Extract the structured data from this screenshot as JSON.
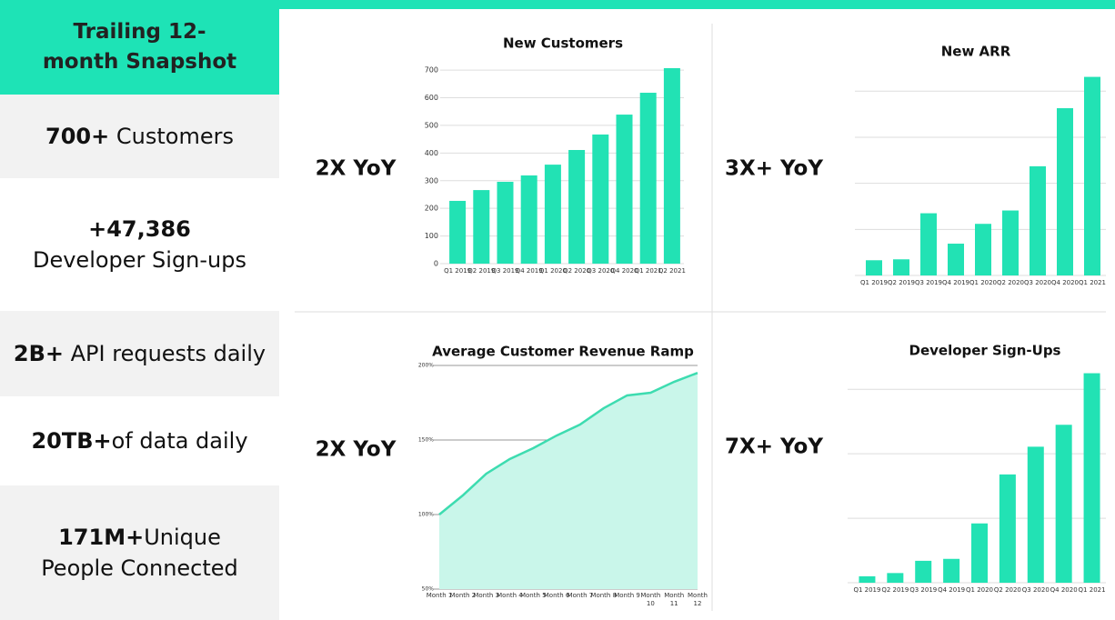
{
  "sidebar": {
    "title": "Trailing 12-month Snapshot",
    "items": [
      {
        "bold": "700+",
        "text": "Customers"
      },
      {
        "bold": "+47,386",
        "line2": "Developer Sign-ups"
      },
      {
        "bold": "2B+",
        "text": "API requests daily"
      },
      {
        "bold": "20TB+",
        "text": "of data daily"
      },
      {
        "bold": "171M+",
        "text": "Unique",
        "line2": "People Connected"
      }
    ]
  },
  "chart_data": [
    {
      "type": "bar",
      "title": "New Customers",
      "annotation": "2X YoY",
      "color": "#22e2b4",
      "categories": [
        "Q1 2019",
        "Q2 2019",
        "Q3 2019",
        "Q4 2019",
        "Q1 2020",
        "Q2 2020",
        "Q3 2020",
        "Q4 2020",
        "Q1 2021",
        "Q2 2021"
      ],
      "values": [
        227,
        266,
        296,
        319,
        358,
        411,
        467,
        539,
        618,
        707
      ],
      "ylim": [
        0,
        720
      ],
      "yticks": [
        0,
        100,
        200,
        300,
        400,
        500,
        600,
        700
      ],
      "grid": true
    },
    {
      "type": "bar",
      "title": "New ARR",
      "annotation": "3X+ YoY",
      "color": "#22e2b4",
      "categories": [
        "Q1 2019",
        "Q2 2019",
        "Q3 2019",
        "Q4 2019",
        "Q1 2020",
        "Q2 2020",
        "Q3 2020",
        "Q4 2020",
        "Q1 2021"
      ],
      "values": [
        0.33,
        0.35,
        1.35,
        0.69,
        1.12,
        1.41,
        2.37,
        3.63,
        4.31
      ],
      "ylim": [
        0,
        4.4
      ],
      "yticks": [
        0,
        1,
        2,
        3,
        4
      ],
      "ytick_labels": false,
      "grid": true
    },
    {
      "type": "area",
      "title": "Average Customer Revenue Ramp",
      "annotation": "2X YoY",
      "color": "#3ddcb0",
      "fill": "#c9f6ea",
      "categories": [
        "Month 1",
        "Month 2",
        "Month 3",
        "Month 4",
        "Month 5",
        "Month 6",
        "Month 7",
        "Month 8",
        "Month 9",
        "Month 10",
        "Month 11",
        "Month 12"
      ],
      "values": [
        100,
        112.8,
        127.4,
        137.2,
        144.5,
        153,
        160.4,
        171.3,
        179.9,
        181.7,
        189,
        195
      ],
      "ylim": [
        50,
        200
      ],
      "yticks": [
        {
          "value": 50,
          "label": "50%"
        },
        {
          "value": 100,
          "label": "100%"
        },
        {
          "value": 150,
          "label": "150%"
        },
        {
          "value": 200,
          "label": "200%"
        }
      ],
      "grid": true
    },
    {
      "type": "bar",
      "title": "Developer Sign-Ups",
      "annotation": "7X+ YoY",
      "color": "#22e2b4",
      "categories": [
        "Q1 2019",
        "Q2 2019",
        "Q3 2019",
        "Q4 2019",
        "Q1 2020",
        "Q2 2020",
        "Q3 2020",
        "Q4 2020",
        "Q1 2021"
      ],
      "values": [
        0.1,
        0.15,
        0.34,
        0.37,
        0.92,
        1.68,
        2.11,
        2.45,
        3.25
      ],
      "ylim": [
        0,
        3.3
      ],
      "yticks": [
        0,
        1,
        2,
        3
      ],
      "ytick_labels": false,
      "grid": true
    }
  ]
}
